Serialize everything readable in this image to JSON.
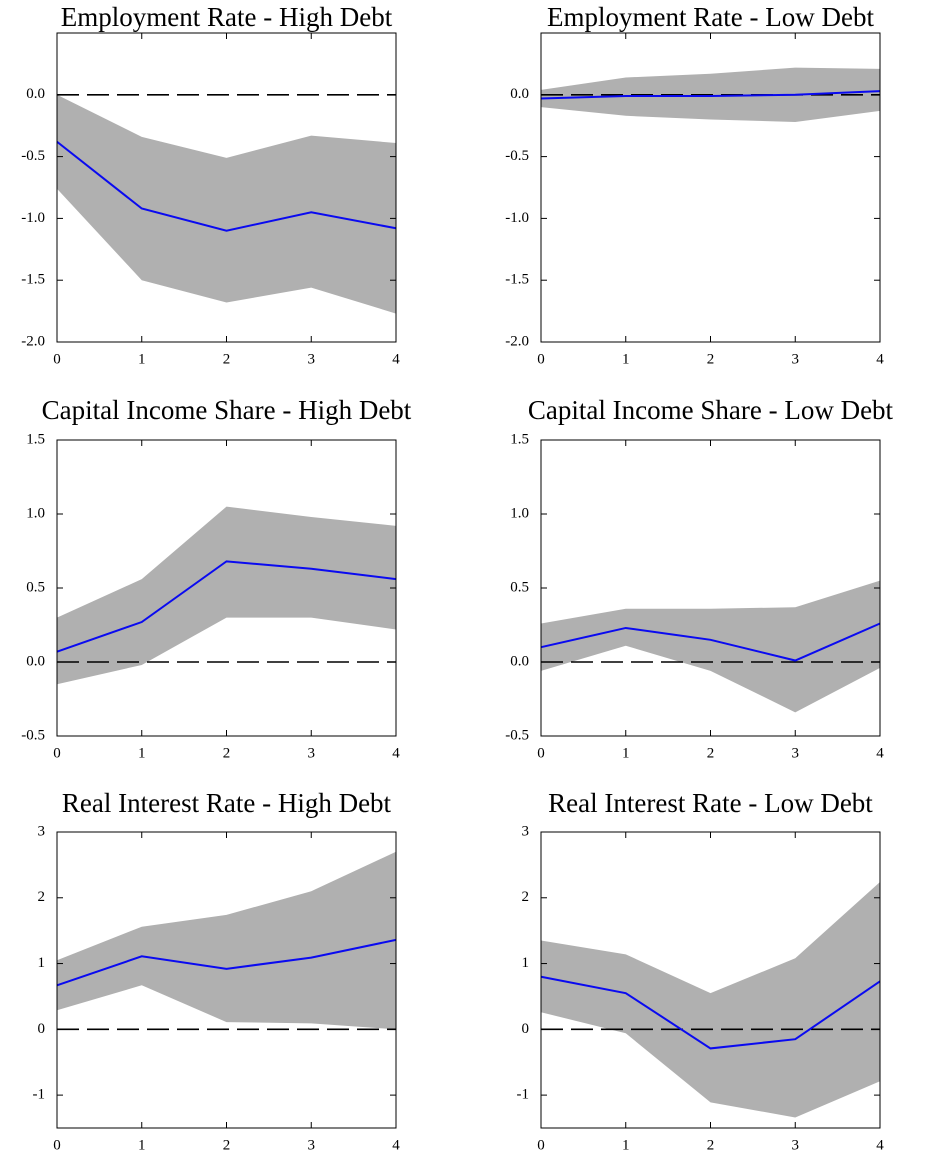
{
  "chart_data": [
    {
      "type": "line",
      "title": "Employment Rate - High Debt",
      "x": [
        0,
        1,
        2,
        3,
        4
      ],
      "xlim": [
        0,
        4
      ],
      "xticks": [
        0,
        1,
        2,
        3,
        4
      ],
      "ylim": [
        -2,
        0.5
      ],
      "yticks": [
        {
          "value": -2,
          "label": "-2.0"
        },
        -1.5,
        {
          "value": -1,
          "label": "-1.0"
        },
        -0.5,
        {
          "value": 0,
          "label": "0.0"
        }
      ],
      "hline": 0,
      "color": "#0a0af0",
      "band_color": "#b0b0b0",
      "values": [
        -0.38,
        -0.92,
        -1.1,
        -0.95,
        -1.08
      ],
      "lower": [
        -0.76,
        -1.5,
        -1.68,
        -1.56,
        -1.77
      ],
      "upper": [
        0.0,
        -0.34,
        -0.51,
        -0.33,
        -0.39
      ]
    },
    {
      "type": "line",
      "title": "Employment Rate - Low Debt",
      "x": [
        0,
        1,
        2,
        3,
        4
      ],
      "xlim": [
        0,
        4
      ],
      "xticks": [
        0,
        1,
        2,
        3,
        4
      ],
      "ylim": [
        -2,
        0.5
      ],
      "yticks": [
        {
          "value": -2,
          "label": "-2.0"
        },
        -1.5,
        {
          "value": -1,
          "label": "-1.0"
        },
        -0.5,
        {
          "value": 0,
          "label": "0.0"
        }
      ],
      "hline": 0,
      "color": "#0a0af0",
      "band_color": "#b0b0b0",
      "values": [
        -0.03,
        -0.01,
        -0.01,
        0.0,
        0.03
      ],
      "lower": [
        -0.1,
        -0.17,
        -0.2,
        -0.22,
        -0.13
      ],
      "upper": [
        0.04,
        0.14,
        0.17,
        0.22,
        0.21
      ]
    },
    {
      "type": "line",
      "title": "Capital Income Share - High Debt",
      "x": [
        0,
        1,
        2,
        3,
        4
      ],
      "xlim": [
        0,
        4
      ],
      "xticks": [
        0,
        1,
        2,
        3,
        4
      ],
      "ylim": [
        -0.5,
        1.5
      ],
      "yticks": [
        -0.5,
        {
          "value": 0,
          "label": "0.0"
        },
        0.5,
        {
          "value": 1,
          "label": "1.0"
        },
        1.5
      ],
      "hline": 0,
      "color": "#0a0af0",
      "band_color": "#b0b0b0",
      "values": [
        0.07,
        0.27,
        0.68,
        0.63,
        0.56
      ],
      "lower": [
        -0.15,
        -0.02,
        0.3,
        0.3,
        0.22
      ],
      "upper": [
        0.3,
        0.56,
        1.05,
        0.98,
        0.92
      ]
    },
    {
      "type": "line",
      "title": "Capital Income Share - Low Debt",
      "x": [
        0,
        1,
        2,
        3,
        4
      ],
      "xlim": [
        0,
        4
      ],
      "xticks": [
        0,
        1,
        2,
        3,
        4
      ],
      "ylim": [
        -0.5,
        1.5
      ],
      "yticks": [
        -0.5,
        {
          "value": 0,
          "label": "0.0"
        },
        0.5,
        {
          "value": 1,
          "label": "1.0"
        },
        1.5
      ],
      "hline": 0,
      "color": "#0a0af0",
      "band_color": "#b0b0b0",
      "values": [
        0.1,
        0.23,
        0.15,
        0.01,
        0.26
      ],
      "lower": [
        -0.06,
        0.11,
        -0.06,
        -0.34,
        -0.04
      ],
      "upper": [
        0.26,
        0.36,
        0.36,
        0.37,
        0.55
      ]
    },
    {
      "type": "line",
      "title": "Real Interest Rate - High Debt",
      "x": [
        0,
        1,
        2,
        3,
        4
      ],
      "xlim": [
        0,
        4
      ],
      "xticks": [
        0,
        1,
        2,
        3,
        4
      ],
      "ylim": [
        -1.5,
        3
      ],
      "yticks": [
        -1,
        0,
        1,
        2,
        3
      ],
      "hline": 0,
      "color": "#0a0af0",
      "band_color": "#b0b0b0",
      "values": [
        0.67,
        1.11,
        0.92,
        1.09,
        1.36
      ],
      "lower": [
        0.29,
        0.67,
        0.11,
        0.09,
        0.0
      ],
      "upper": [
        1.05,
        1.56,
        1.74,
        2.1,
        2.7
      ]
    },
    {
      "type": "line",
      "title": "Real Interest Rate - Low Debt",
      "x": [
        0,
        1,
        2,
        3,
        4
      ],
      "xlim": [
        0,
        4
      ],
      "xticks": [
        0,
        1,
        2,
        3,
        4
      ],
      "ylim": [
        -1.5,
        3
      ],
      "yticks": [
        -1,
        0,
        1,
        2,
        3
      ],
      "hline": 0,
      "color": "#0a0af0",
      "band_color": "#b0b0b0",
      "values": [
        0.8,
        0.55,
        -0.29,
        -0.15,
        0.73
      ],
      "lower": [
        0.26,
        -0.06,
        -1.11,
        -1.34,
        -0.79
      ],
      "upper": [
        1.35,
        1.14,
        0.55,
        1.08,
        2.24
      ]
    }
  ]
}
